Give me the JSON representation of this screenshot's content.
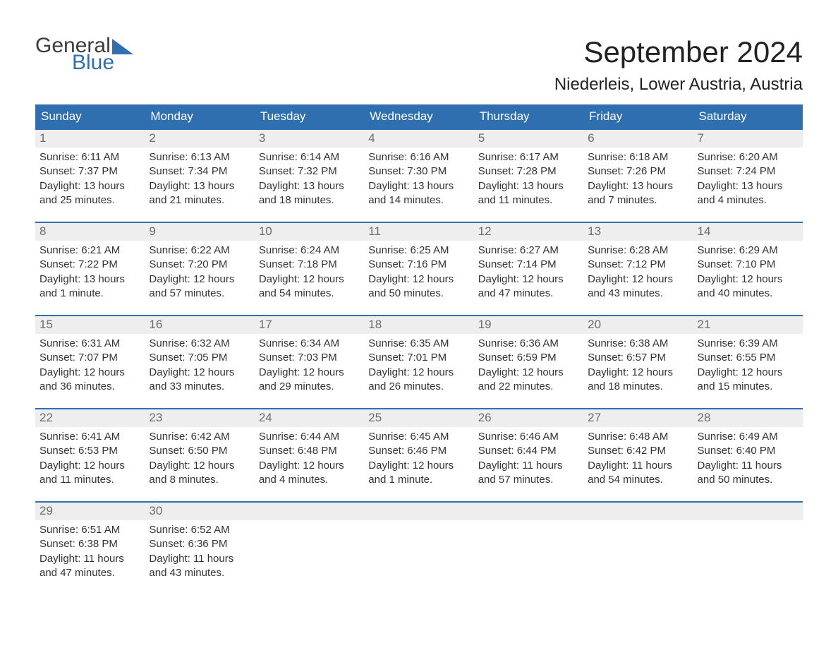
{
  "logo": {
    "word1": "General",
    "word2": "Blue",
    "word1_color": "#3c3c3c",
    "word2_color": "#2f6fb0"
  },
  "title": "September 2024",
  "location": "Niederleis, Lower Austria, Austria",
  "colors": {
    "header_bg": "#2f6fb0",
    "header_text": "#ffffff",
    "daynum_bg": "#eeeeee",
    "daynum_text": "#6d6d6d",
    "body_text": "#333333",
    "week_border": "#2f6fb0",
    "background": "#ffffff"
  },
  "fonts": {
    "title_size_pt": 32,
    "location_size_pt": 18,
    "weekday_size_pt": 13,
    "daynum_size_pt": 13,
    "body_size_pt": 11
  },
  "weekdays": [
    "Sunday",
    "Monday",
    "Tuesday",
    "Wednesday",
    "Thursday",
    "Friday",
    "Saturday"
  ],
  "weeks": [
    [
      {
        "n": "1",
        "sunrise": "Sunrise: 6:11 AM",
        "sunset": "Sunset: 7:37 PM",
        "dl1": "Daylight: 13 hours",
        "dl2": "and 25 minutes."
      },
      {
        "n": "2",
        "sunrise": "Sunrise: 6:13 AM",
        "sunset": "Sunset: 7:34 PM",
        "dl1": "Daylight: 13 hours",
        "dl2": "and 21 minutes."
      },
      {
        "n": "3",
        "sunrise": "Sunrise: 6:14 AM",
        "sunset": "Sunset: 7:32 PM",
        "dl1": "Daylight: 13 hours",
        "dl2": "and 18 minutes."
      },
      {
        "n": "4",
        "sunrise": "Sunrise: 6:16 AM",
        "sunset": "Sunset: 7:30 PM",
        "dl1": "Daylight: 13 hours",
        "dl2": "and 14 minutes."
      },
      {
        "n": "5",
        "sunrise": "Sunrise: 6:17 AM",
        "sunset": "Sunset: 7:28 PM",
        "dl1": "Daylight: 13 hours",
        "dl2": "and 11 minutes."
      },
      {
        "n": "6",
        "sunrise": "Sunrise: 6:18 AM",
        "sunset": "Sunset: 7:26 PM",
        "dl1": "Daylight: 13 hours",
        "dl2": "and 7 minutes."
      },
      {
        "n": "7",
        "sunrise": "Sunrise: 6:20 AM",
        "sunset": "Sunset: 7:24 PM",
        "dl1": "Daylight: 13 hours",
        "dl2": "and 4 minutes."
      }
    ],
    [
      {
        "n": "8",
        "sunrise": "Sunrise: 6:21 AM",
        "sunset": "Sunset: 7:22 PM",
        "dl1": "Daylight: 13 hours",
        "dl2": "and 1 minute."
      },
      {
        "n": "9",
        "sunrise": "Sunrise: 6:22 AM",
        "sunset": "Sunset: 7:20 PM",
        "dl1": "Daylight: 12 hours",
        "dl2": "and 57 minutes."
      },
      {
        "n": "10",
        "sunrise": "Sunrise: 6:24 AM",
        "sunset": "Sunset: 7:18 PM",
        "dl1": "Daylight: 12 hours",
        "dl2": "and 54 minutes."
      },
      {
        "n": "11",
        "sunrise": "Sunrise: 6:25 AM",
        "sunset": "Sunset: 7:16 PM",
        "dl1": "Daylight: 12 hours",
        "dl2": "and 50 minutes."
      },
      {
        "n": "12",
        "sunrise": "Sunrise: 6:27 AM",
        "sunset": "Sunset: 7:14 PM",
        "dl1": "Daylight: 12 hours",
        "dl2": "and 47 minutes."
      },
      {
        "n": "13",
        "sunrise": "Sunrise: 6:28 AM",
        "sunset": "Sunset: 7:12 PM",
        "dl1": "Daylight: 12 hours",
        "dl2": "and 43 minutes."
      },
      {
        "n": "14",
        "sunrise": "Sunrise: 6:29 AM",
        "sunset": "Sunset: 7:10 PM",
        "dl1": "Daylight: 12 hours",
        "dl2": "and 40 minutes."
      }
    ],
    [
      {
        "n": "15",
        "sunrise": "Sunrise: 6:31 AM",
        "sunset": "Sunset: 7:07 PM",
        "dl1": "Daylight: 12 hours",
        "dl2": "and 36 minutes."
      },
      {
        "n": "16",
        "sunrise": "Sunrise: 6:32 AM",
        "sunset": "Sunset: 7:05 PM",
        "dl1": "Daylight: 12 hours",
        "dl2": "and 33 minutes."
      },
      {
        "n": "17",
        "sunrise": "Sunrise: 6:34 AM",
        "sunset": "Sunset: 7:03 PM",
        "dl1": "Daylight: 12 hours",
        "dl2": "and 29 minutes."
      },
      {
        "n": "18",
        "sunrise": "Sunrise: 6:35 AM",
        "sunset": "Sunset: 7:01 PM",
        "dl1": "Daylight: 12 hours",
        "dl2": "and 26 minutes."
      },
      {
        "n": "19",
        "sunrise": "Sunrise: 6:36 AM",
        "sunset": "Sunset: 6:59 PM",
        "dl1": "Daylight: 12 hours",
        "dl2": "and 22 minutes."
      },
      {
        "n": "20",
        "sunrise": "Sunrise: 6:38 AM",
        "sunset": "Sunset: 6:57 PM",
        "dl1": "Daylight: 12 hours",
        "dl2": "and 18 minutes."
      },
      {
        "n": "21",
        "sunrise": "Sunrise: 6:39 AM",
        "sunset": "Sunset: 6:55 PM",
        "dl1": "Daylight: 12 hours",
        "dl2": "and 15 minutes."
      }
    ],
    [
      {
        "n": "22",
        "sunrise": "Sunrise: 6:41 AM",
        "sunset": "Sunset: 6:53 PM",
        "dl1": "Daylight: 12 hours",
        "dl2": "and 11 minutes."
      },
      {
        "n": "23",
        "sunrise": "Sunrise: 6:42 AM",
        "sunset": "Sunset: 6:50 PM",
        "dl1": "Daylight: 12 hours",
        "dl2": "and 8 minutes."
      },
      {
        "n": "24",
        "sunrise": "Sunrise: 6:44 AM",
        "sunset": "Sunset: 6:48 PM",
        "dl1": "Daylight: 12 hours",
        "dl2": "and 4 minutes."
      },
      {
        "n": "25",
        "sunrise": "Sunrise: 6:45 AM",
        "sunset": "Sunset: 6:46 PM",
        "dl1": "Daylight: 12 hours",
        "dl2": "and 1 minute."
      },
      {
        "n": "26",
        "sunrise": "Sunrise: 6:46 AM",
        "sunset": "Sunset: 6:44 PM",
        "dl1": "Daylight: 11 hours",
        "dl2": "and 57 minutes."
      },
      {
        "n": "27",
        "sunrise": "Sunrise: 6:48 AM",
        "sunset": "Sunset: 6:42 PM",
        "dl1": "Daylight: 11 hours",
        "dl2": "and 54 minutes."
      },
      {
        "n": "28",
        "sunrise": "Sunrise: 6:49 AM",
        "sunset": "Sunset: 6:40 PM",
        "dl1": "Daylight: 11 hours",
        "dl2": "and 50 minutes."
      }
    ],
    [
      {
        "n": "29",
        "sunrise": "Sunrise: 6:51 AM",
        "sunset": "Sunset: 6:38 PM",
        "dl1": "Daylight: 11 hours",
        "dl2": "and 47 minutes."
      },
      {
        "n": "30",
        "sunrise": "Sunrise: 6:52 AM",
        "sunset": "Sunset: 6:36 PM",
        "dl1": "Daylight: 11 hours",
        "dl2": "and 43 minutes."
      },
      {
        "empty": true
      },
      {
        "empty": true
      },
      {
        "empty": true
      },
      {
        "empty": true
      },
      {
        "empty": true
      }
    ]
  ]
}
